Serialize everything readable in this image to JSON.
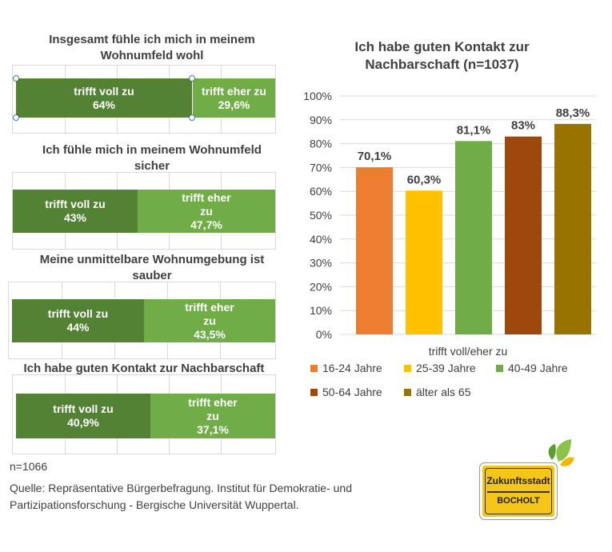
{
  "left_charts": [
    {
      "title": "Insgesamt fühle ich mich in meinem Wohnumfeld wohl",
      "full_label": [
        "trifft voll zu",
        "64%"
      ],
      "partial_label": [
        "trifft eher zu",
        "29,6%"
      ],
      "full_value": 64,
      "partial_value": 29.6
    },
    {
      "title": "Ich fühle mich in meinem Wohnumfeld sicher",
      "full_label": [
        "trifft voll zu",
        "43%"
      ],
      "partial_label": [
        "trifft eher",
        "zu",
        "47,7%"
      ],
      "full_value": 43,
      "partial_value": 47.7
    },
    {
      "title": "Meine unmittelbare Wohnumgebung ist sauber",
      "full_label": [
        "trifft voll zu",
        "44%"
      ],
      "partial_label": [
        "trifft eher",
        "zu",
        "43,5%"
      ],
      "full_value": 44,
      "partial_value": 43.5
    },
    {
      "title": "Ich habe guten Kontakt zur Nachbarschaft",
      "full_label": [
        "trifft voll zu",
        "40,9%"
      ],
      "partial_label": [
        "trifft eher",
        "zu",
        "37,1%"
      ],
      "full_value": 40.9,
      "partial_value": 37.1
    }
  ],
  "chart_data": {
    "type": "bar",
    "title": "Ich habe guten Kontakt zur Nachbarschaft (n=1037)",
    "xlabel": "trifft voll/eher zu",
    "ylabel": "",
    "ylim": [
      0,
      100
    ],
    "yticks": [
      "0%",
      "10%",
      "20%",
      "30%",
      "40%",
      "50%",
      "60%",
      "70%",
      "80%",
      "90%",
      "100%"
    ],
    "legend_position": "bottom",
    "grid": true,
    "series": [
      {
        "name": "16-24 Jahre",
        "value": 70.1,
        "label": "70,1%",
        "color": "#ed7d31"
      },
      {
        "name": "25-39 Jahre",
        "value": 60.3,
        "label": "60,3%",
        "color": "#ffc000"
      },
      {
        "name": "40-49 Jahre",
        "value": 81.1,
        "label": "81,1%",
        "color": "#70ad47"
      },
      {
        "name": "50-64 Jahre",
        "value": 83,
        "label": "83%",
        "color": "#9e480e"
      },
      {
        "name": "älter als 65",
        "value": 88.3,
        "label": "88,3%",
        "color": "#997300"
      }
    ]
  },
  "footer": {
    "n_note": "n=1066",
    "source_line1": "Quelle: Repräsentative Bürgerbefragung. Institut für Demokratie- und",
    "source_line2": "Partizipationsforschung - Bergische Universität Wuppertal."
  },
  "logo": {
    "top_text": "Zukunftsstadt",
    "bottom_text": "BOCHOLT"
  },
  "colors": {
    "full": "#548235",
    "partial": "#70ad47"
  }
}
